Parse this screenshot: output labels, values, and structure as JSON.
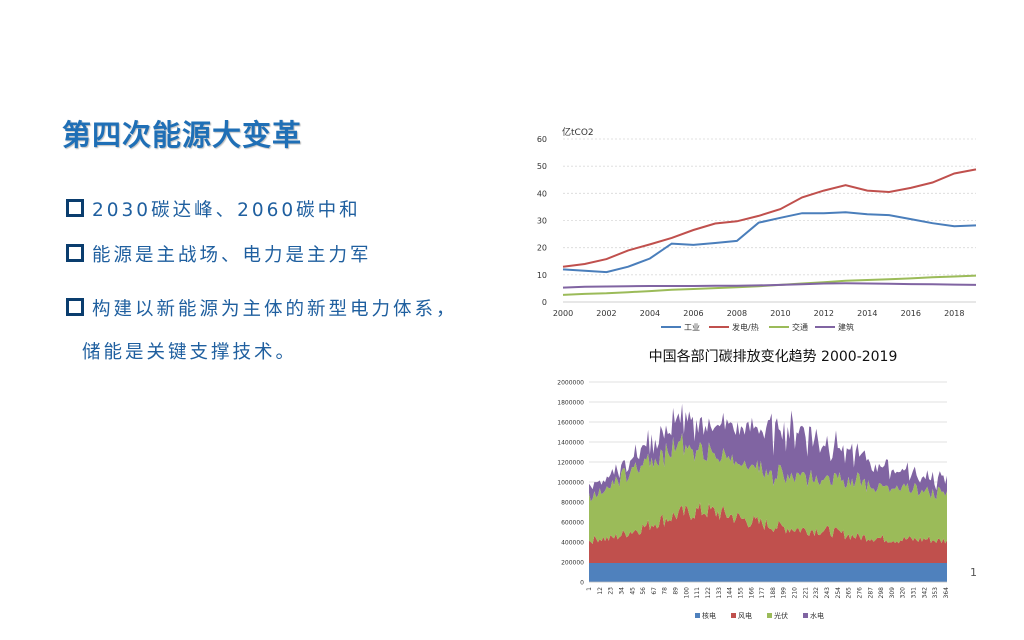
{
  "slide": {
    "title": "第四次能源大变革",
    "bullets": [
      "2030碳达峰、2060碳中和",
      "能源是主战场、电力是主力军",
      "构建以新能源为主体的新型电力体系，"
    ],
    "bullet3_cont": "储能是关键支撑技术。",
    "page_number": "1"
  },
  "colors": {
    "title": "#1f6fb6",
    "bullet_text": "#1f5f9f",
    "bullet_box": "#0a3d6e"
  },
  "chart_data": [
    {
      "type": "line",
      "ylabel": "亿tCO2",
      "ylim": [
        0,
        60
      ],
      "yticks": [
        0,
        10,
        20,
        30,
        40,
        50,
        60
      ],
      "xticks": [
        2000,
        2002,
        2004,
        2006,
        2008,
        2010,
        2012,
        2014,
        2016,
        2018
      ],
      "xlim": [
        2000,
        2019
      ],
      "x": [
        2000,
        2001,
        2002,
        2003,
        2004,
        2005,
        2006,
        2007,
        2008,
        2009,
        2010,
        2011,
        2012,
        2013,
        2014,
        2015,
        2016,
        2017,
        2018,
        2019
      ],
      "legend": "bottom",
      "series": [
        {
          "name": "工业",
          "color": "#4a7ebb",
          "values": [
            12,
            11.5,
            11,
            13,
            16,
            21.5,
            21,
            21.7,
            22.5,
            29.2,
            31,
            32.7,
            32.7,
            33,
            32.3,
            32,
            30.5,
            29,
            27.9,
            28.2
          ]
        },
        {
          "name": "发电/热",
          "color": "#c0504d",
          "values": [
            13,
            14,
            15.8,
            19,
            21.2,
            23.6,
            26.5,
            28.9,
            29.7,
            31.7,
            34.2,
            38.5,
            41,
            43,
            41,
            40.5,
            42,
            44,
            47.3,
            48.8
          ]
        },
        {
          "name": "交通",
          "color": "#9bbb59",
          "values": [
            2.6,
            3,
            3.2,
            3.6,
            4,
            4.5,
            4.8,
            5.1,
            5.4,
            5.8,
            6.3,
            6.8,
            7.3,
            7.8,
            8.1,
            8.4,
            8.7,
            9.1,
            9.4,
            9.7
          ]
        },
        {
          "name": "建筑",
          "color": "#8064a2",
          "values": [
            5.3,
            5.6,
            5.7,
            5.8,
            5.9,
            5.9,
            5.9,
            6,
            6,
            6.1,
            6.3,
            6.5,
            6.8,
            6.9,
            6.8,
            6.7,
            6.6,
            6.5,
            6.4,
            6.3
          ]
        }
      ]
    },
    {
      "type": "area",
      "title": "中国各部门碳排放变化趋势 2000-2019",
      "ylim": [
        0,
        2000000
      ],
      "yticks": [
        0,
        200000,
        400000,
        600000,
        800000,
        1000000,
        1200000,
        1400000,
        1600000,
        1800000,
        2000000
      ],
      "xticks": [
        1,
        12,
        23,
        34,
        45,
        56,
        67,
        78,
        89,
        100,
        111,
        122,
        133,
        144,
        155,
        166,
        177,
        188,
        199,
        210,
        221,
        232,
        243,
        254,
        265,
        276,
        287,
        298,
        309,
        320,
        331,
        342,
        353,
        364
      ],
      "xlim": [
        1,
        365
      ],
      "stacked": true,
      "legend": "bottom",
      "series": [
        {
          "name": "核电",
          "color": "#4f81bd",
          "values": [
            190000,
            190000,
            190000,
            190000,
            190000,
            190000,
            190000,
            190000,
            190000,
            190000,
            190000,
            190000,
            190000,
            190000,
            190000,
            190000,
            190000,
            190000,
            190000,
            190000,
            190000,
            190000,
            190000,
            190000,
            190000,
            190000,
            190000,
            190000,
            190000,
            190000,
            190000,
            190000,
            190000,
            190000,
            190000,
            190000,
            190000
          ]
        },
        {
          "name": "风电",
          "color": "#c0504d",
          "values": [
            220000,
            250000,
            240000,
            270000,
            310000,
            340000,
            380000,
            420000,
            450000,
            490000,
            500000,
            520000,
            520000,
            500000,
            480000,
            450000,
            420000,
            400000,
            380000,
            360000,
            350000,
            340000,
            330000,
            330000,
            320000,
            300000,
            280000,
            260000,
            260000,
            250000,
            240000,
            230000,
            240000,
            230000,
            240000,
            220000,
            230000
          ]
        },
        {
          "name": "光伏",
          "color": "#9bbb59",
          "values": [
            450000,
            480000,
            520000,
            560000,
            600000,
            630000,
            650000,
            670000,
            680000,
            680000,
            660000,
            640000,
            600000,
            580000,
            560000,
            550000,
            540000,
            540000,
            530000,
            520000,
            520000,
            520000,
            540000,
            540000,
            550000,
            560000,
            560000,
            560000,
            540000,
            530000,
            520000,
            510000,
            500000,
            490000,
            480000,
            480000,
            470000
          ]
        },
        {
          "name": "水电",
          "color": "#8064a2",
          "values": [
            130000,
            120000,
            110000,
            100000,
            110000,
            150000,
            180000,
            210000,
            230000,
            250000,
            250000,
            260000,
            280000,
            300000,
            320000,
            340000,
            370000,
            400000,
            430000,
            460000,
            480000,
            460000,
            440000,
            410000,
            360000,
            320000,
            280000,
            260000,
            240000,
            220000,
            200000,
            180000,
            160000,
            150000,
            140000,
            130000,
            130000
          ]
        }
      ]
    }
  ]
}
